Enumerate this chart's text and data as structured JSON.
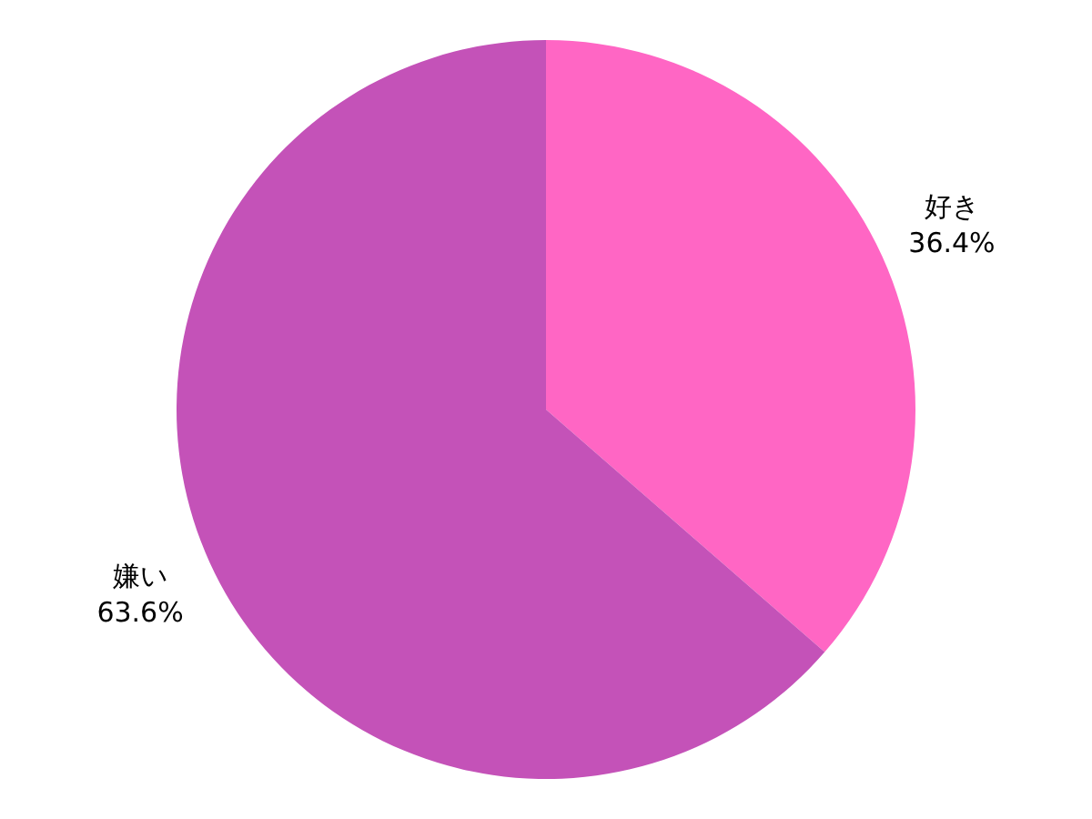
{
  "chart_data": {
    "type": "pie",
    "categories": [
      "好き",
      "嫌い"
    ],
    "values": [
      36.4,
      63.6
    ],
    "value_labels": [
      "36.4%",
      "63.6%"
    ],
    "colors": [
      "#ff66c4",
      "#c452b8"
    ],
    "legend": false
  }
}
